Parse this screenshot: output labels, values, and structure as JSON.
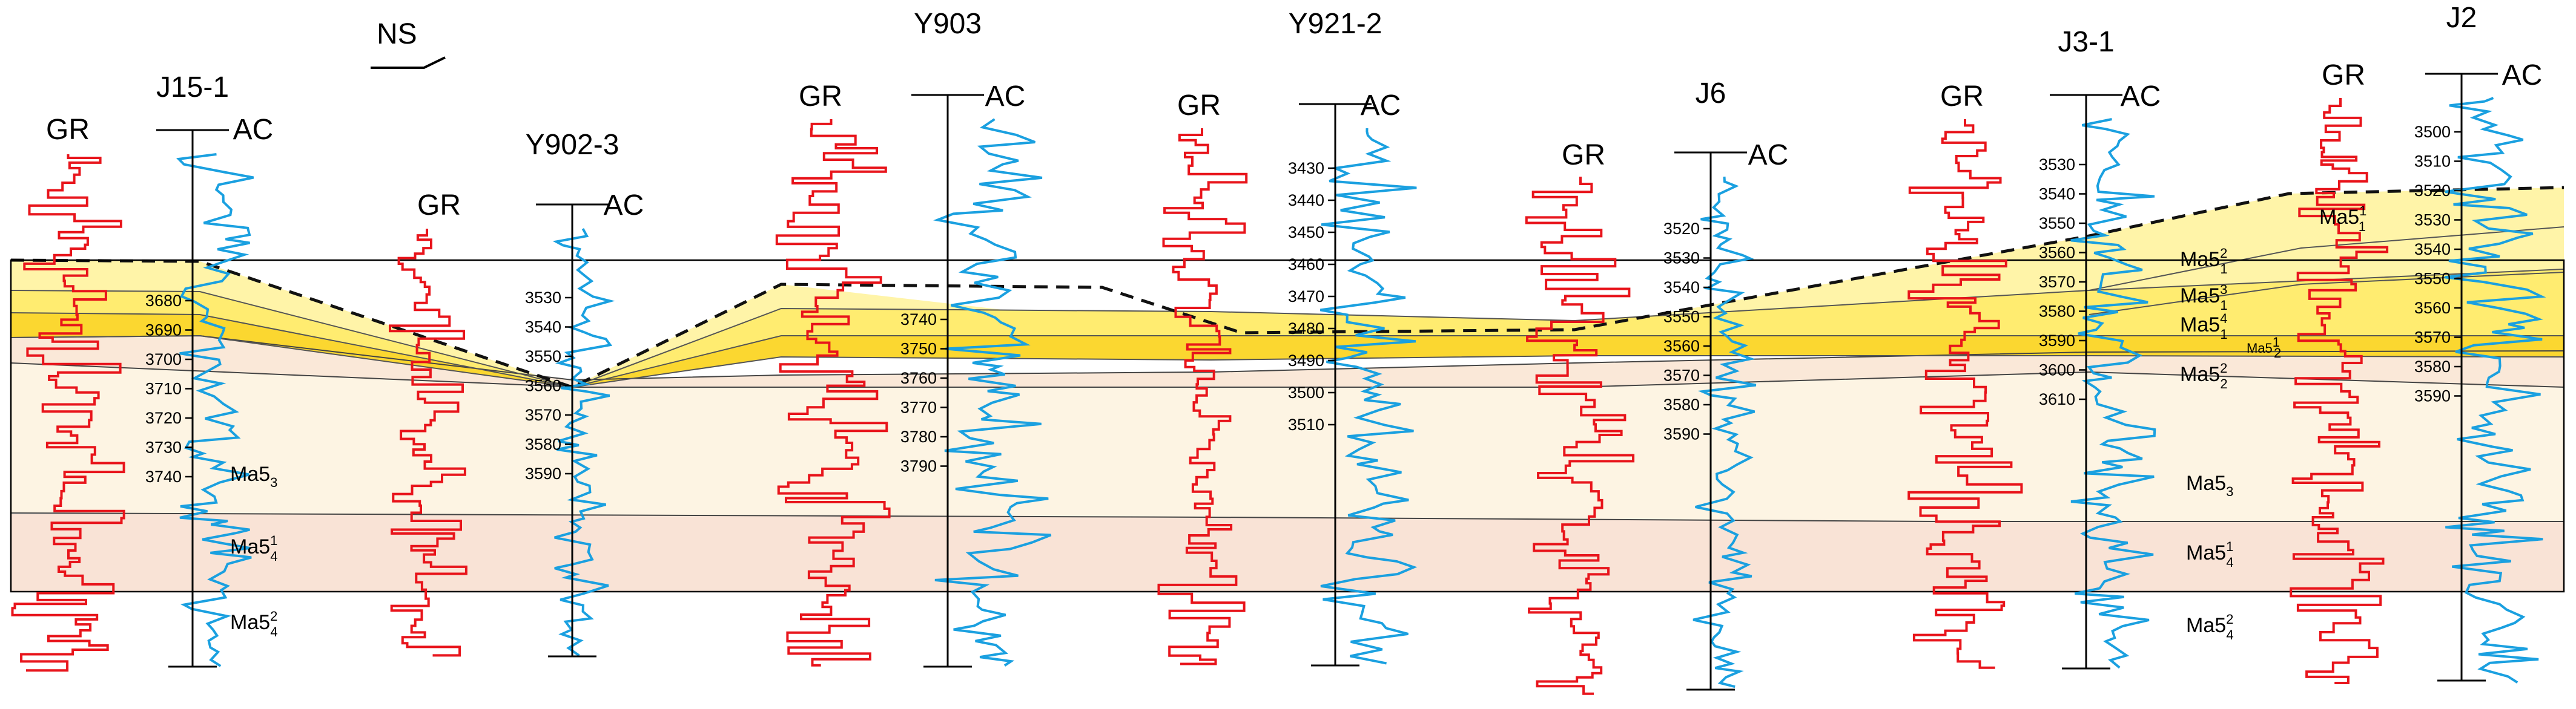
{
  "direction_label": "NS",
  "log_labels": {
    "gr": "GR",
    "ac": "AC"
  },
  "colors": {
    "gr_curve": "#e8141b",
    "ac_curve": "#1aa0e0",
    "band_bottom": "#f9e3d6",
    "band_middle": "#fdf4e3",
    "band_upper": "#fae8d8",
    "yellow_light": "#fff4a8",
    "yellow_mid": "#ffec70",
    "yellow_dark": "#fbd730",
    "dashed_top": "#111111"
  },
  "wells": [
    {
      "id": "J15-1",
      "depths": [
        "3680",
        "3690",
        "3700",
        "3710",
        "3720",
        "3730",
        "3740"
      ]
    },
    {
      "id": "Y902-3",
      "depths": [
        "3530",
        "3540",
        "3550",
        "3560",
        "3570",
        "3580",
        "3590"
      ]
    },
    {
      "id": "Y903",
      "depths": [
        "3740",
        "3750",
        "3760",
        "3770",
        "3780",
        "3790"
      ]
    },
    {
      "id": "Y921-2",
      "depths": [
        "3430",
        "3440",
        "3450",
        "3460",
        "3470",
        "3480",
        "3490",
        "3500",
        "3510"
      ]
    },
    {
      "id": "J6",
      "depths": [
        "3520",
        "3530",
        "3540",
        "3550",
        "3560",
        "3570",
        "3580",
        "3590"
      ]
    },
    {
      "id": "J3-1",
      "depths": [
        "3530",
        "3540",
        "3550",
        "3560",
        "3570",
        "3580",
        "3590",
        "3600",
        "3610"
      ]
    },
    {
      "id": "J2",
      "depths": [
        "3500",
        "3510",
        "3520",
        "3530",
        "3540",
        "3550",
        "3560",
        "3570",
        "3580",
        "3590"
      ]
    }
  ],
  "layers_left": [
    {
      "base": "Ma5",
      "sub": "3",
      "sup": ""
    },
    {
      "base": "Ma5",
      "sub": "4",
      "sup": "1"
    },
    {
      "base": "Ma5",
      "sub": "4",
      "sup": "2"
    }
  ],
  "layers_right": [
    {
      "base": "Ma5",
      "sub": "1",
      "sup": "1"
    },
    {
      "base": "Ma5",
      "sub": "1",
      "sup": "2"
    },
    {
      "base": "Ma5",
      "sub": "1",
      "sup": "3"
    },
    {
      "base": "Ma5",
      "sub": "1",
      "sup": "4"
    },
    {
      "base": "Ma5",
      "sub": "2",
      "sup": "1"
    },
    {
      "base": "Ma5",
      "sub": "2",
      "sup": "2"
    },
    {
      "base": "Ma5",
      "sub": "3",
      "sup": ""
    },
    {
      "base": "Ma5",
      "sub": "4",
      "sup": "1"
    },
    {
      "base": "Ma5",
      "sub": "4",
      "sup": "2"
    }
  ]
}
